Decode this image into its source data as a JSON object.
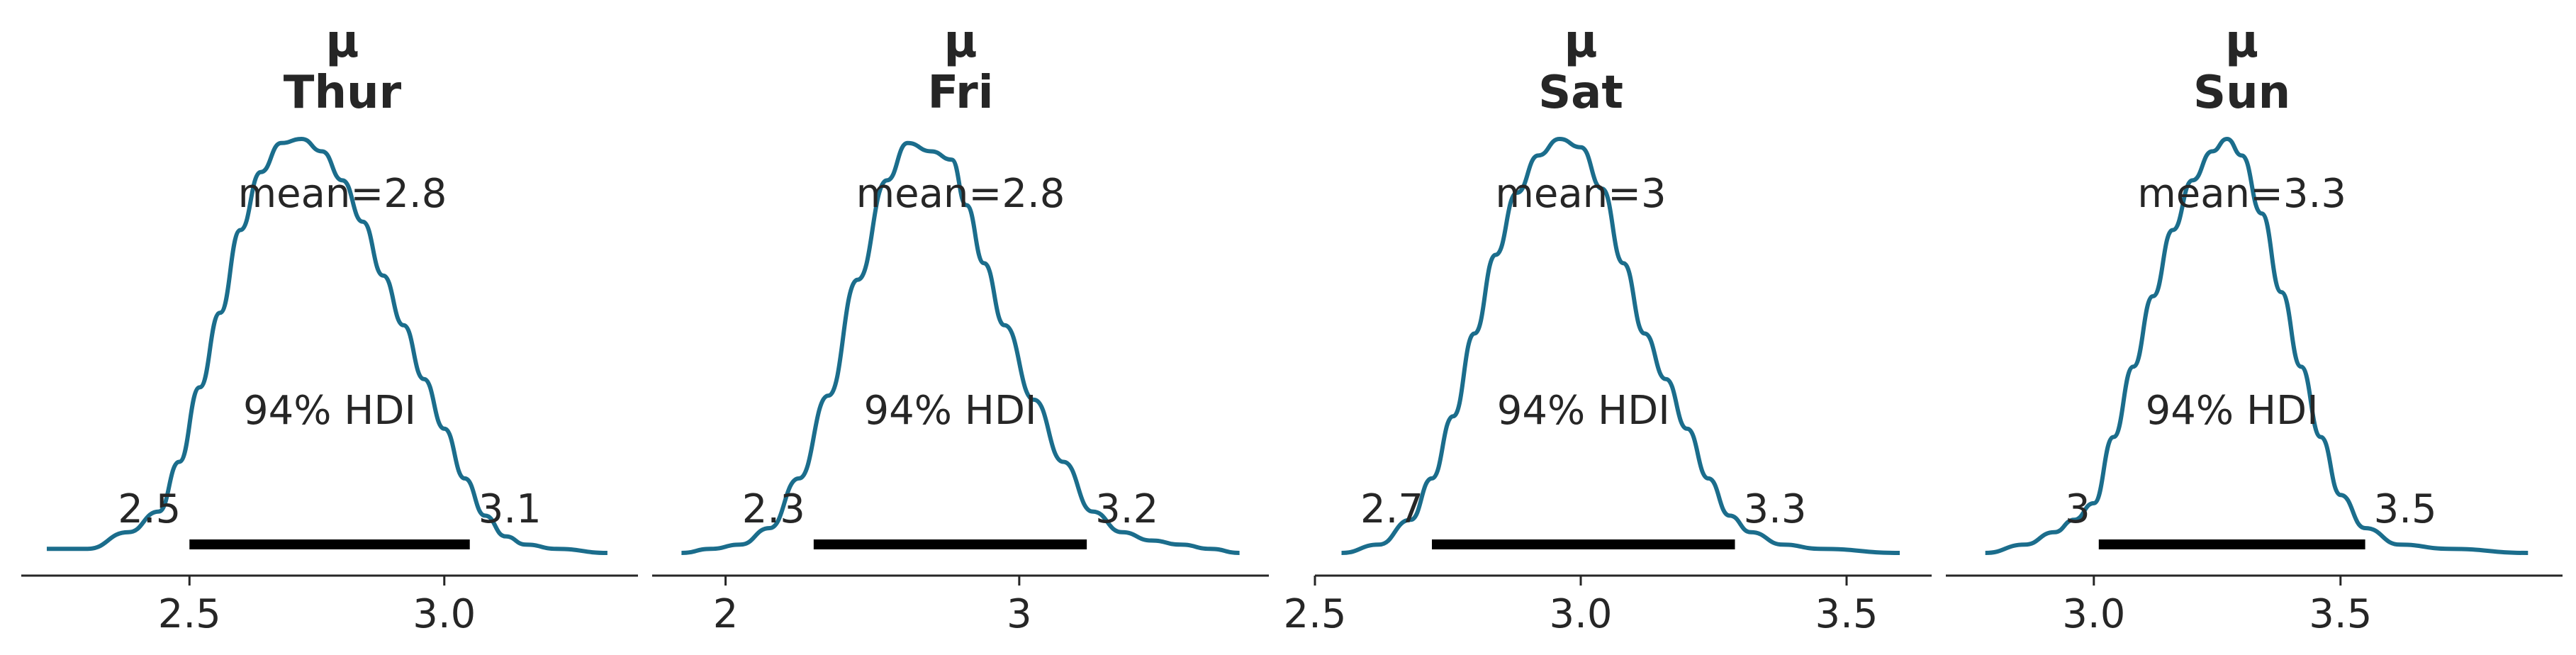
{
  "chart_data": {
    "type": "area",
    "panels": [
      {
        "title_line1": "μ",
        "title_line2": "Thur",
        "mean": 2.8,
        "mean_label": "mean=2.8",
        "hdi_label": "94% HDI",
        "hdi": [
          2.5,
          3.05
        ],
        "hdi_low_label": "2.5",
        "hdi_high_label": "3.1",
        "xlim": [
          2.17,
          3.38
        ],
        "ticks": [
          2.5,
          3.0
        ],
        "tick_labels": [
          "2.5",
          "3.0"
        ],
        "density_x": [
          2.22,
          2.3,
          2.38,
          2.44,
          2.48,
          2.52,
          2.56,
          2.6,
          2.64,
          2.68,
          2.72,
          2.76,
          2.8,
          2.84,
          2.88,
          2.92,
          2.96,
          3.0,
          3.04,
          3.08,
          3.12,
          3.16,
          3.22,
          3.32
        ],
        "density_y": [
          0.01,
          0.01,
          0.05,
          0.1,
          0.22,
          0.4,
          0.58,
          0.78,
          0.92,
          0.99,
          1.0,
          0.97,
          0.9,
          0.8,
          0.67,
          0.55,
          0.42,
          0.3,
          0.18,
          0.09,
          0.04,
          0.02,
          0.01,
          0.0
        ]
      },
      {
        "title_line1": "μ",
        "title_line2": "Fri",
        "mean": 2.8,
        "mean_label": "mean=2.8",
        "hdi_label": "94% HDI",
        "hdi": [
          2.3,
          3.23
        ],
        "hdi_low_label": "2.3",
        "hdi_high_label": "3.2",
        "xlim": [
          1.75,
          3.85
        ],
        "ticks": [
          2,
          3
        ],
        "tick_labels": [
          "2",
          "3"
        ],
        "density_x": [
          1.85,
          1.95,
          2.05,
          2.15,
          2.25,
          2.35,
          2.45,
          2.55,
          2.62,
          2.7,
          2.77,
          2.82,
          2.88,
          2.95,
          3.05,
          3.15,
          3.25,
          3.35,
          3.45,
          3.55,
          3.65,
          3.75
        ],
        "density_y": [
          0.0,
          0.01,
          0.02,
          0.06,
          0.18,
          0.38,
          0.66,
          0.9,
          0.99,
          0.97,
          0.95,
          0.84,
          0.7,
          0.55,
          0.37,
          0.22,
          0.1,
          0.05,
          0.03,
          0.02,
          0.01,
          0.0
        ]
      },
      {
        "title_line1": "μ",
        "title_line2": "Sat",
        "mean": 3.0,
        "mean_label": "mean=3",
        "hdi_label": "94% HDI",
        "hdi": [
          2.72,
          3.29
        ],
        "hdi_low_label": "2.7",
        "hdi_high_label": "3.3",
        "xlim": [
          2.5,
          3.66
        ],
        "ticks": [
          2.5,
          3.0,
          3.5
        ],
        "tick_labels": [
          "2.5",
          "3.0",
          "3.5"
        ],
        "density_x": [
          2.55,
          2.62,
          2.68,
          2.72,
          2.76,
          2.8,
          2.84,
          2.88,
          2.92,
          2.96,
          3.0,
          3.04,
          3.08,
          3.12,
          3.16,
          3.2,
          3.24,
          3.28,
          3.32,
          3.38,
          3.45,
          3.6
        ],
        "density_y": [
          0.0,
          0.02,
          0.08,
          0.18,
          0.33,
          0.53,
          0.72,
          0.87,
          0.96,
          1.0,
          0.98,
          0.88,
          0.7,
          0.53,
          0.42,
          0.3,
          0.18,
          0.09,
          0.05,
          0.02,
          0.01,
          0.0
        ]
      },
      {
        "title_line1": "μ",
        "title_line2": "Sun",
        "mean": 3.3,
        "mean_label": "mean=3.3",
        "hdi_label": "94% HDI",
        "hdi": [
          3.01,
          3.55
        ],
        "hdi_low_label": "3",
        "hdi_high_label": "3.5",
        "xlim": [
          2.7,
          3.95
        ],
        "ticks": [
          3.0,
          3.5
        ],
        "tick_labels": [
          "3.0",
          "3.5"
        ],
        "density_x": [
          2.78,
          2.86,
          2.92,
          2.96,
          3.0,
          3.04,
          3.08,
          3.12,
          3.16,
          3.2,
          3.24,
          3.27,
          3.3,
          3.34,
          3.38,
          3.42,
          3.46,
          3.5,
          3.55,
          3.62,
          3.72,
          3.88
        ],
        "density_y": [
          0.0,
          0.02,
          0.05,
          0.08,
          0.12,
          0.28,
          0.45,
          0.62,
          0.78,
          0.9,
          0.97,
          1.0,
          0.96,
          0.82,
          0.63,
          0.45,
          0.28,
          0.14,
          0.06,
          0.02,
          0.01,
          0.0
        ]
      }
    ],
    "colors": {
      "density": "#1b6d8c",
      "hdi": "#000000",
      "axis": "#262626"
    }
  }
}
